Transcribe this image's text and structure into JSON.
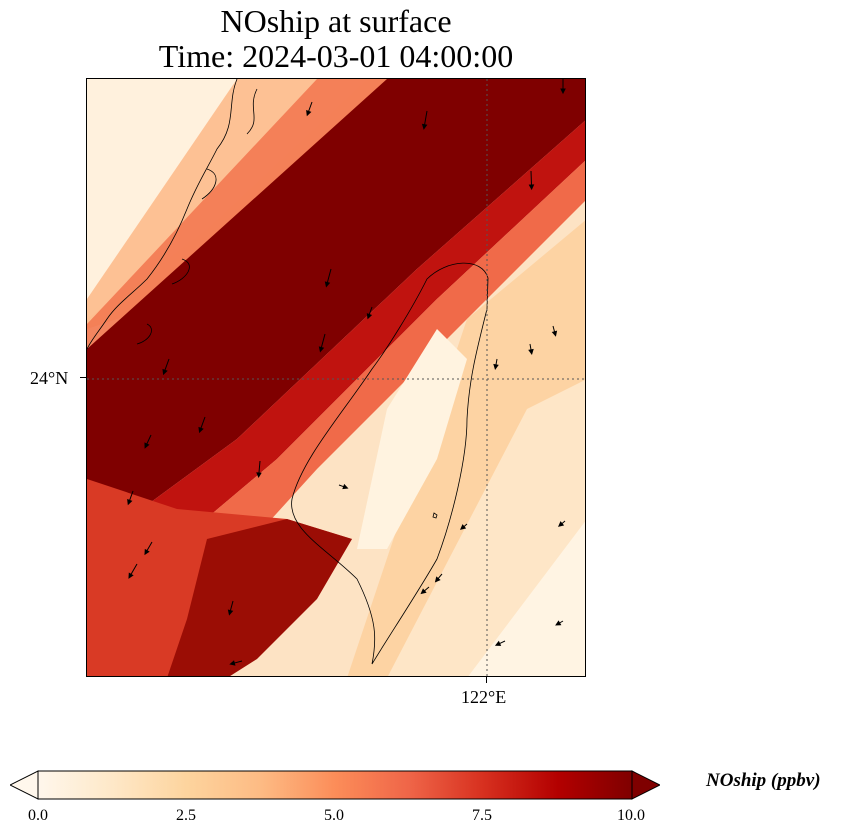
{
  "title": {
    "line1": "NOship at surface",
    "line2": "Time: 2024-03-01 04:00:00"
  },
  "map": {
    "lat_label": "24°N",
    "lon_label": "122°E",
    "colormap": "OrRd",
    "colors": {
      "low": "#fff7ec",
      "mid": "#fc8d59",
      "high": "#7f0000",
      "coast": "#000000",
      "grid": "#555555"
    }
  },
  "colorbar": {
    "label": "NOship (ppbv)",
    "min": 0.0,
    "max": 10.0,
    "extend": "both",
    "ticks": [
      "0.0",
      "2.5",
      "5.0",
      "7.5",
      "10.0"
    ],
    "stops": [
      "#fff7ec",
      "#fee8c8",
      "#fdd49e",
      "#fdbb84",
      "#fc8d59",
      "#ef6548",
      "#d7301f",
      "#b30000",
      "#7f0000"
    ]
  }
}
